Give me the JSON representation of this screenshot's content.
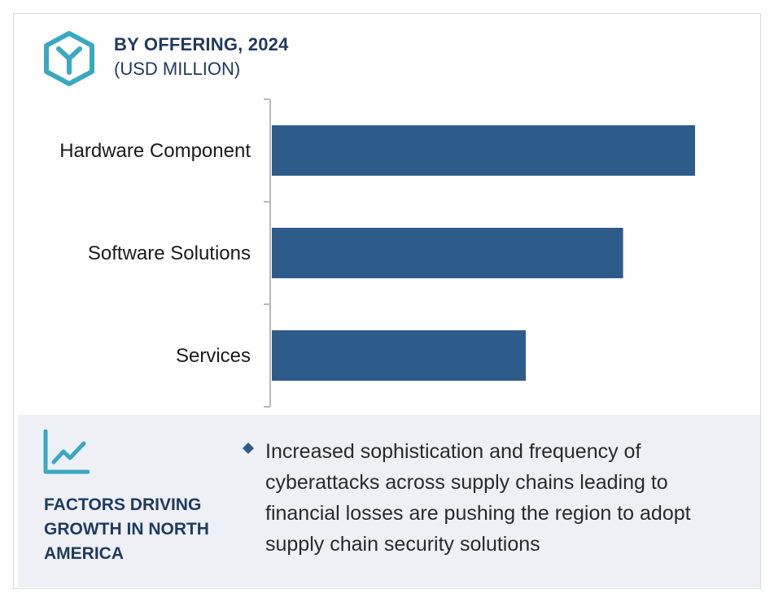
{
  "header": {
    "title": "BY OFFERING, 2024",
    "subtitle": "(USD MILLION)"
  },
  "colors": {
    "bar": "#2e5c8a",
    "accent": "#3aa8c1",
    "title": "#1f3a5f",
    "panel_bg": "#eef0f5",
    "axis": "#b9b9b9"
  },
  "icons": {
    "logo": "hexagon-y-logo-icon",
    "growth": "line-chart-growth-icon",
    "bullet": "diamond-bullet-icon"
  },
  "chart_data": {
    "type": "bar",
    "orientation": "horizontal",
    "categories": [
      "Hardware Component",
      "Software Solutions",
      "Services"
    ],
    "values": [
      100,
      83,
      60
    ],
    "xlim": [
      0,
      100
    ],
    "grid": false,
    "legend": "none",
    "title": "BY OFFERING, 2024",
    "xlabel": "",
    "ylabel": ""
  },
  "factors": {
    "title": "FACTORS DRIVING GROWTH IN NORTH AMERICA",
    "text": "Increased sophistication and frequency of cyberattacks across supply chains leading to financial losses are pushing the region to adopt supply chain security solutions"
  }
}
